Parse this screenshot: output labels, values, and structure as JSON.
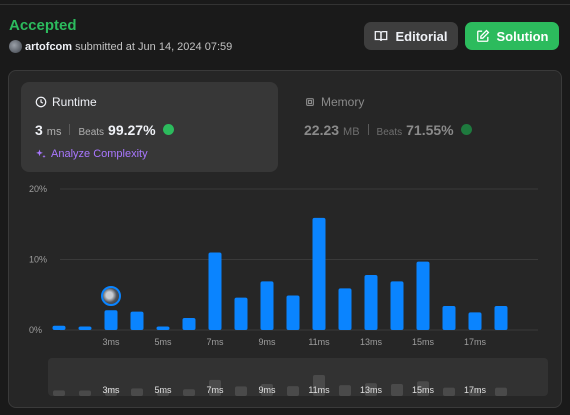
{
  "header": {
    "status": "Accepted",
    "username": "artofcom",
    "submitted_text": "submitted at Jun 14, 2024 07:59"
  },
  "buttons": {
    "editorial": "Editorial",
    "solution": "Solution"
  },
  "runtime": {
    "title": "Runtime",
    "value": "3",
    "unit": "ms",
    "beats_label": "Beats",
    "beats_pct": "99.27%",
    "analyze_label": "Analyze Complexity"
  },
  "memory": {
    "title": "Memory",
    "value": "22.23",
    "unit": "MB",
    "beats_label": "Beats",
    "beats_pct": "71.55%"
  },
  "colors": {
    "accepted": "#2cbb5d",
    "bar": "#0a84ff",
    "analyze": "#a977ff"
  },
  "chart_data": {
    "type": "bar",
    "y_ticks": [
      "20%",
      "10%",
      "0%"
    ],
    "ylim": [
      0,
      20
    ],
    "x_labels": [
      "3ms",
      "5ms",
      "7ms",
      "9ms",
      "11ms",
      "13ms",
      "15ms",
      "17ms"
    ],
    "values": [
      0.6,
      0.5,
      2.8,
      2.6,
      0.5,
      1.7,
      11.0,
      4.6,
      6.9,
      4.9,
      15.9,
      5.9,
      7.8,
      6.9,
      9.7,
      3.4,
      2.5,
      3.4
    ],
    "highlight_index": 2,
    "grid": true
  },
  "overview": {
    "x_labels": [
      "3ms",
      "5ms",
      "7ms",
      "9ms",
      "11ms",
      "13ms",
      "15ms",
      "17ms"
    ]
  }
}
